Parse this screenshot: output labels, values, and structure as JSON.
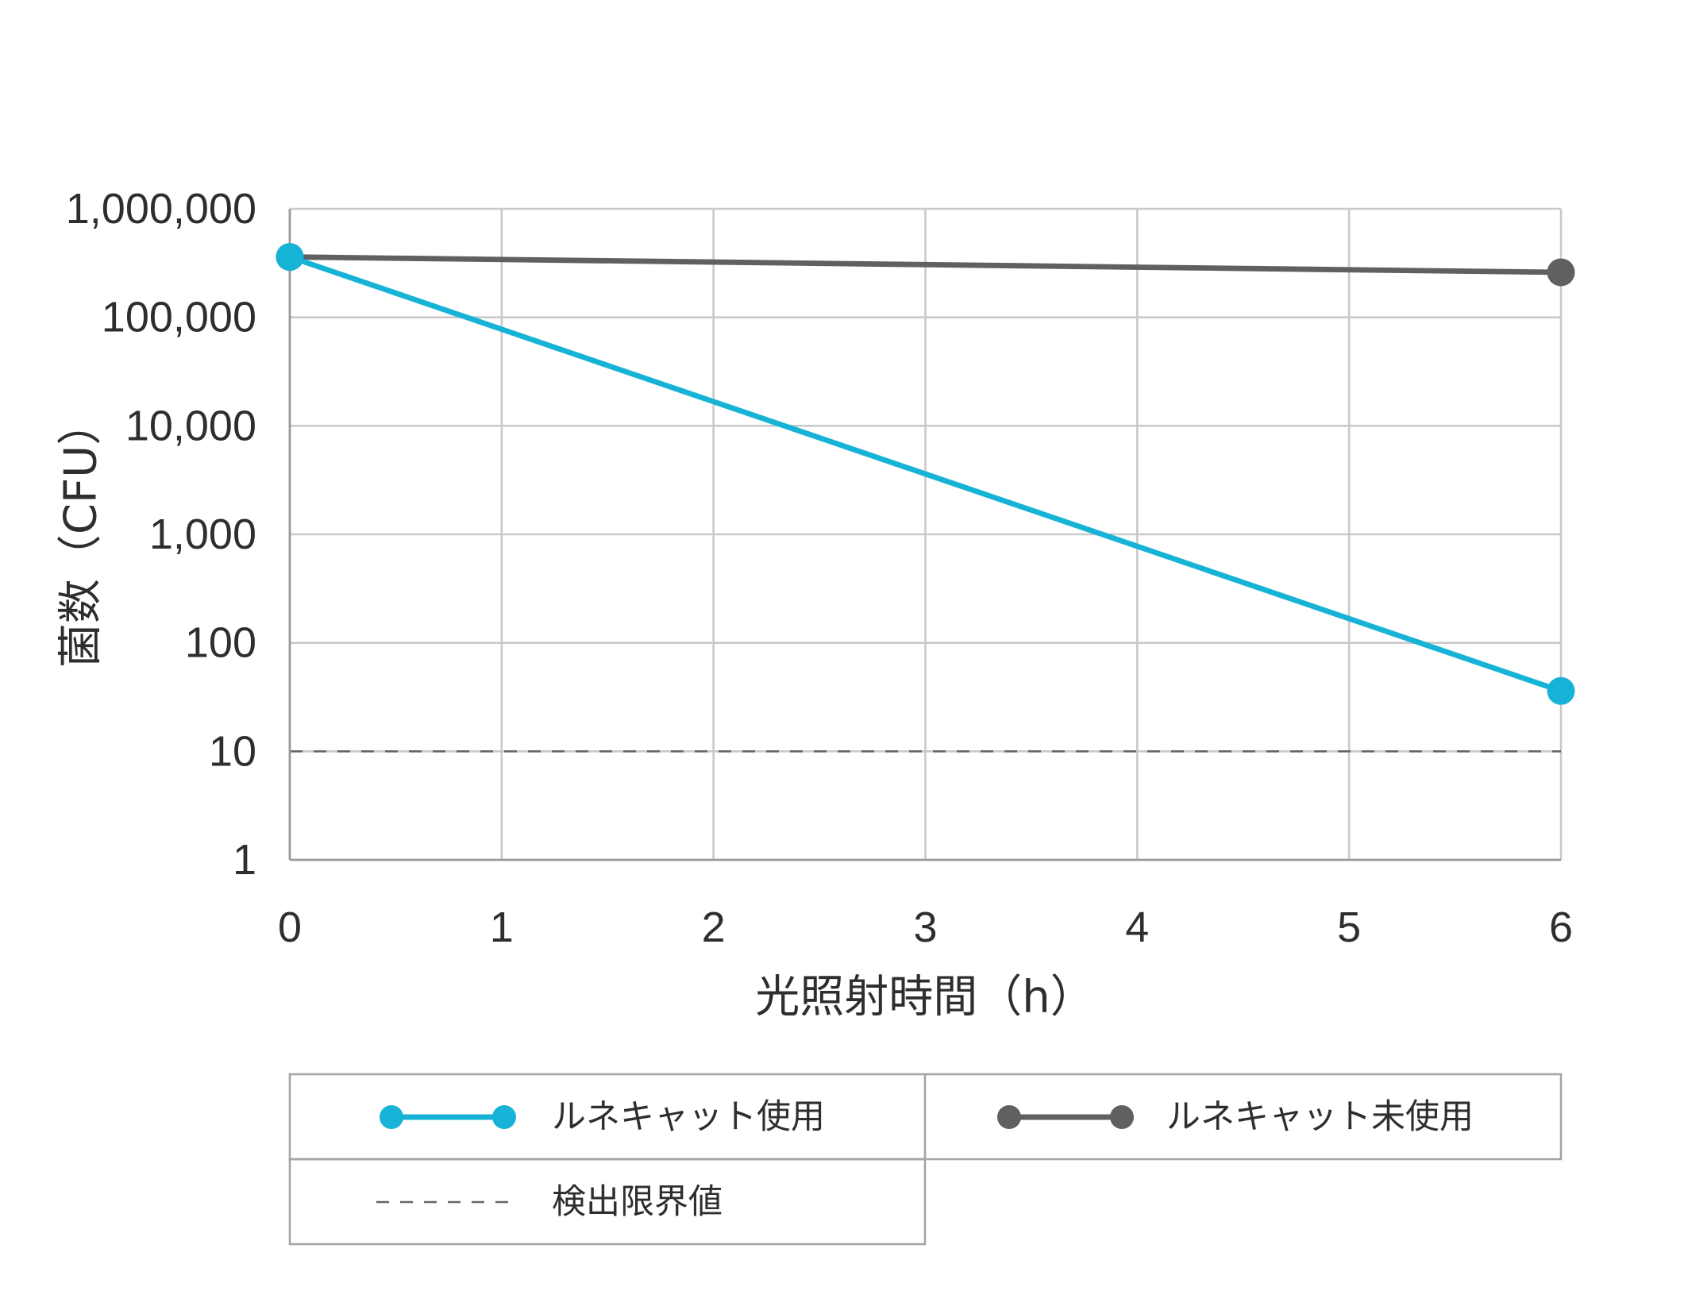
{
  "chart_data": {
    "type": "line",
    "xlabel": "光照射時間（h）",
    "ylabel": "菌数（CFU）",
    "xlim": [
      0,
      6
    ],
    "xticks": [
      0,
      1,
      2,
      3,
      4,
      5,
      6
    ],
    "yscale": "log",
    "ylim": [
      1,
      1000000
    ],
    "yticks": [
      1,
      10,
      100,
      1000,
      10000,
      100000,
      1000000
    ],
    "ytick_labels": [
      "1",
      "10",
      "100",
      "1,000",
      "10,000",
      "100,000",
      "1,000,000"
    ],
    "grid": true,
    "legend": "bottom",
    "series": [
      {
        "name": "ルネキャット使用",
        "x": [
          0,
          6
        ],
        "values": [
          360000,
          36
        ],
        "color": "#17b3d6",
        "marker": "circle"
      },
      {
        "name": "ルネキャット未使用",
        "x": [
          0,
          6
        ],
        "values": [
          360000,
          260000
        ],
        "color": "#606060",
        "marker": "circle"
      }
    ],
    "reference_lines": [
      {
        "name": "検出限界値",
        "y": 10,
        "style": "dashed",
        "color": "#666666"
      }
    ]
  }
}
